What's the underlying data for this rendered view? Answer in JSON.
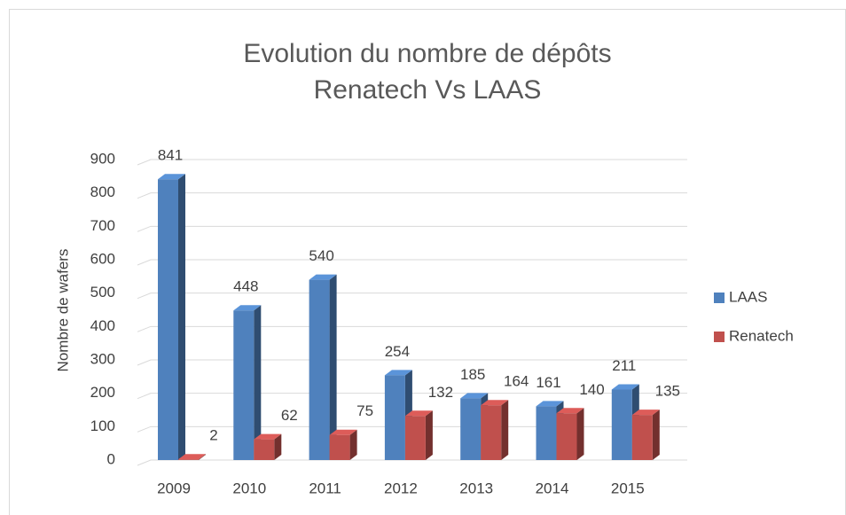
{
  "chart_data": {
    "type": "bar3d",
    "title": [
      "Evolution du nombre de dépôts",
      "Renatech Vs LAAS"
    ],
    "y_label": "Nombre de wafers",
    "categories": [
      "2009",
      "2010",
      "2011",
      "2012",
      "2013",
      "2014",
      "2015"
    ],
    "series": [
      {
        "name": "LAAS",
        "color": "#4f81bd",
        "values": [
          841,
          448,
          540,
          254,
          185,
          161,
          211
        ]
      },
      {
        "name": "Renatech",
        "color": "#c0504d",
        "values": [
          2,
          62,
          75,
          132,
          164,
          140,
          135
        ]
      }
    ],
    "ylim": [
      0,
      900
    ],
    "yticks": [
      0,
      100,
      200,
      300,
      400,
      500,
      600,
      700,
      800,
      900
    ],
    "grid": true,
    "legend": "right"
  }
}
